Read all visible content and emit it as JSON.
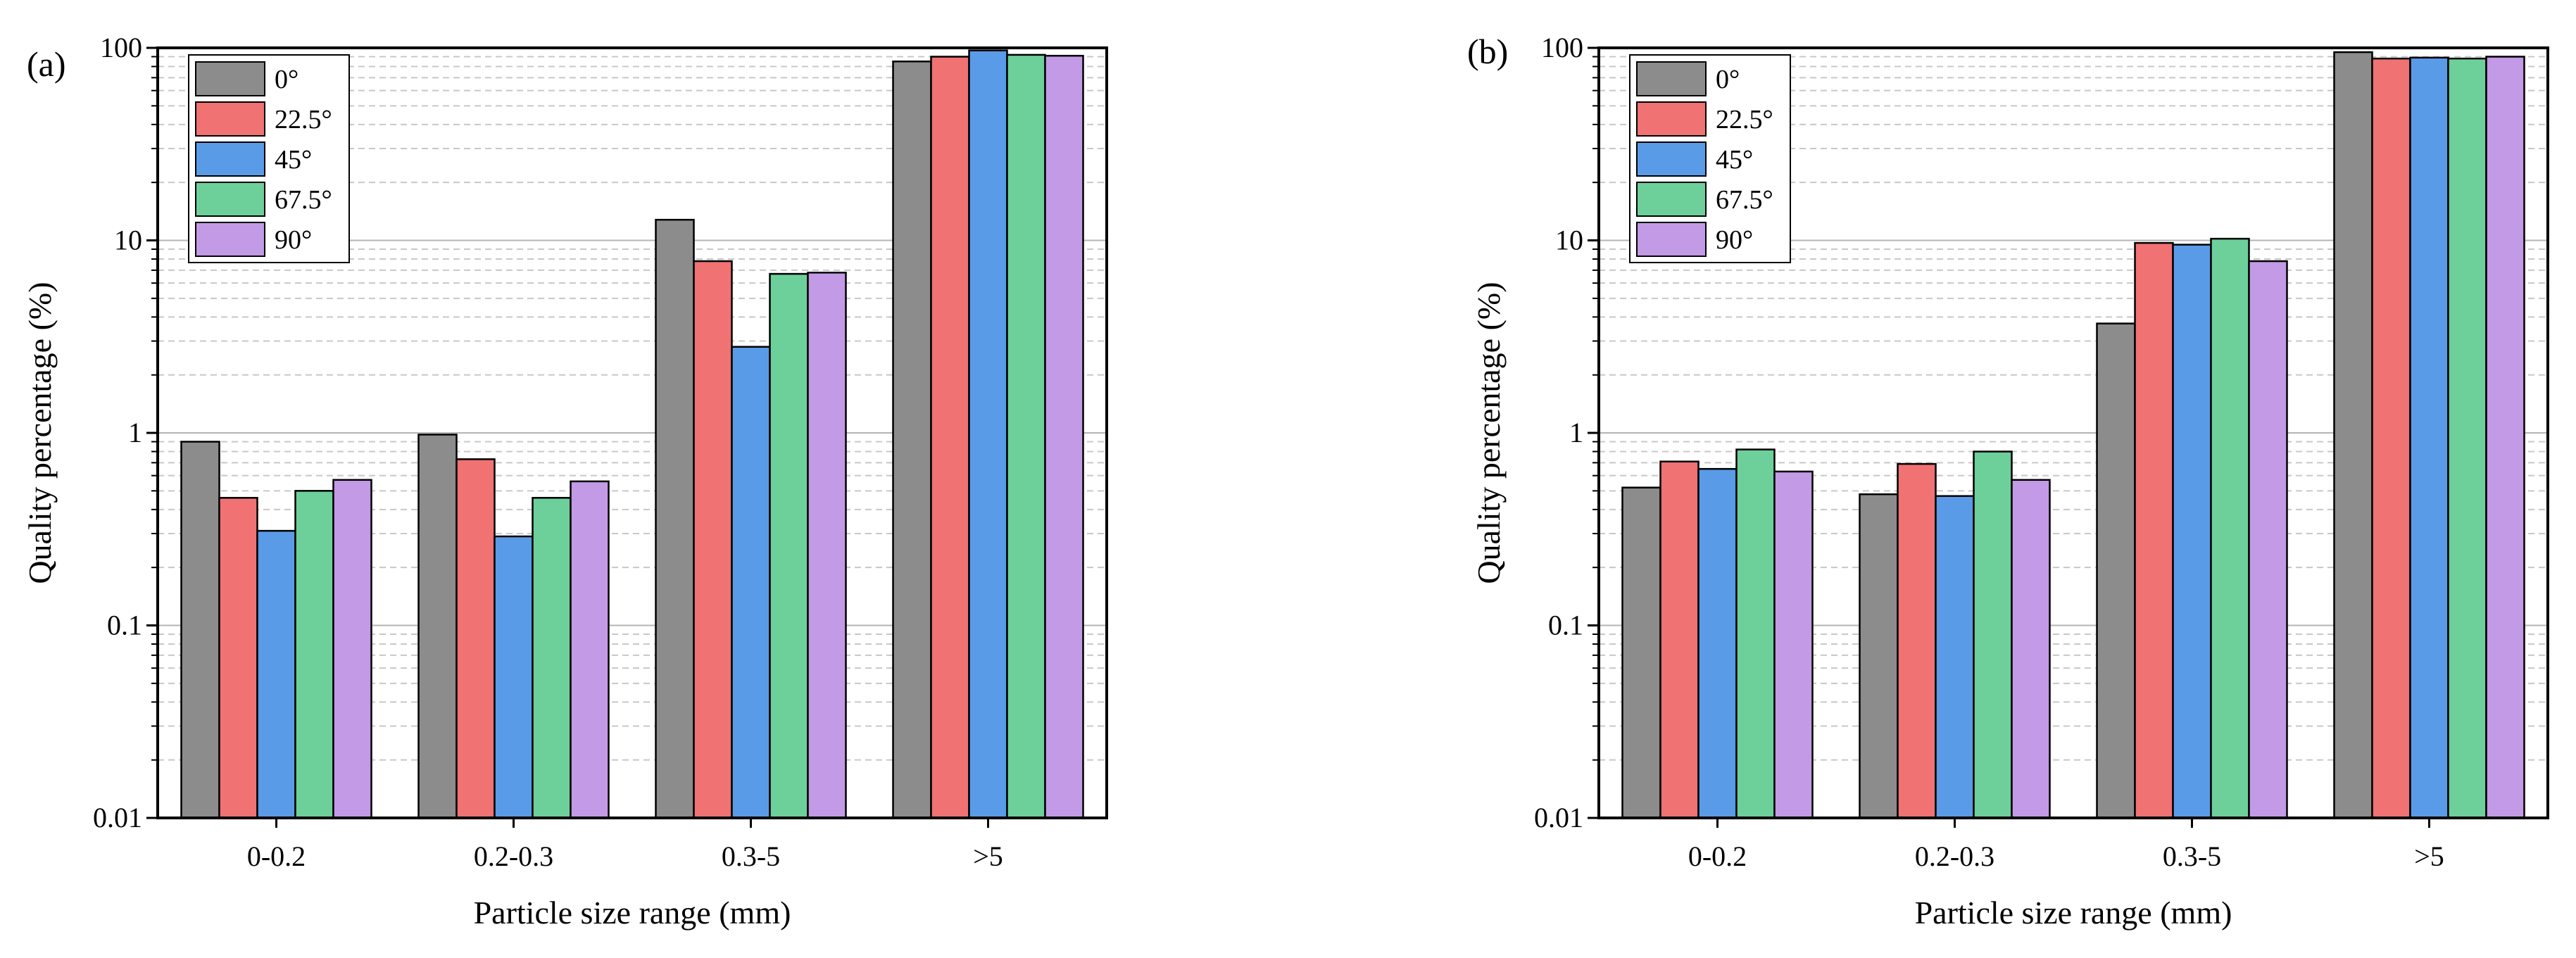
{
  "chart_data": [
    {
      "panel_label": "(a)",
      "type": "bar",
      "yscale": "log",
      "ylim": [
        0.01,
        100
      ],
      "xlabel": "Particle size range (mm)",
      "ylabel": "Quality percentage (%)",
      "categories": [
        "0-0.2",
        "0.2-0.3",
        "0.3-5",
        ">5"
      ],
      "ytick_values": [
        0.01,
        0.1,
        1,
        10,
        100
      ],
      "ytick_labels": [
        "0.01",
        "0.1",
        "1",
        "10",
        "100"
      ],
      "grid": "major solid, minor dashed",
      "legend_position": "top-left",
      "series": [
        {
          "name": "0°",
          "color": "#8c8c8c",
          "values": [
            0.9,
            0.98,
            12.8,
            85
          ]
        },
        {
          "name": "22.5°",
          "color": "#f07272",
          "values": [
            0.46,
            0.73,
            7.8,
            90
          ]
        },
        {
          "name": "45°",
          "color": "#5a9be8",
          "values": [
            0.31,
            0.29,
            2.8,
            97
          ]
        },
        {
          "name": "67.5°",
          "color": "#6dd09a",
          "values": [
            0.5,
            0.46,
            6.7,
            92
          ]
        },
        {
          "name": "90°",
          "color": "#c39ae6",
          "values": [
            0.57,
            0.56,
            6.8,
            91
          ]
        }
      ]
    },
    {
      "panel_label": "(b)",
      "type": "bar",
      "yscale": "log",
      "ylim": [
        0.01,
        100
      ],
      "xlabel": "Particle size range (mm)",
      "ylabel": "Quality percentage (%)",
      "categories": [
        "0-0.2",
        "0.2-0.3",
        "0.3-5",
        ">5"
      ],
      "ytick_values": [
        0.01,
        0.1,
        1,
        10,
        100
      ],
      "ytick_labels": [
        "0.01",
        "0.1",
        "1",
        "10",
        "100"
      ],
      "grid": "major solid, minor dashed",
      "legend_position": "top-left",
      "series": [
        {
          "name": "0°",
          "color": "#8c8c8c",
          "values": [
            0.52,
            0.48,
            3.7,
            95
          ]
        },
        {
          "name": "22.5°",
          "color": "#f07272",
          "values": [
            0.71,
            0.69,
            9.7,
            88
          ]
        },
        {
          "name": "45°",
          "color": "#5a9be8",
          "values": [
            0.65,
            0.47,
            9.5,
            89
          ]
        },
        {
          "name": "67.5°",
          "color": "#6dd09a",
          "values": [
            0.82,
            0.8,
            10.2,
            88
          ]
        },
        {
          "name": "90°",
          "color": "#c39ae6",
          "values": [
            0.63,
            0.57,
            7.8,
            90
          ]
        }
      ]
    }
  ]
}
